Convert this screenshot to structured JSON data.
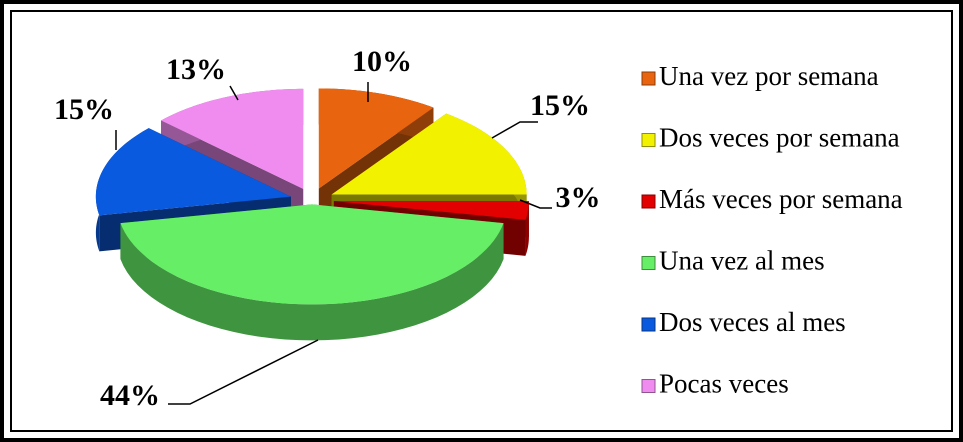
{
  "chart_data": {
    "type": "pie3d",
    "categories": [
      "Una vez por semana",
      "Dos veces por semana",
      "Más veces por semana",
      "Una vez al mes",
      "Dos veces al mes",
      "Pocas veces"
    ],
    "values": [
      10,
      15,
      3,
      44,
      15,
      13
    ],
    "value_labels": [
      "10%",
      "15%",
      "3%",
      "44%",
      "15%",
      "13%"
    ],
    "colors": [
      "#e8640e",
      "#f2f200",
      "#e20000",
      "#66ee66",
      "#0a5ae0",
      "#f08cf0"
    ],
    "legend": "right"
  }
}
